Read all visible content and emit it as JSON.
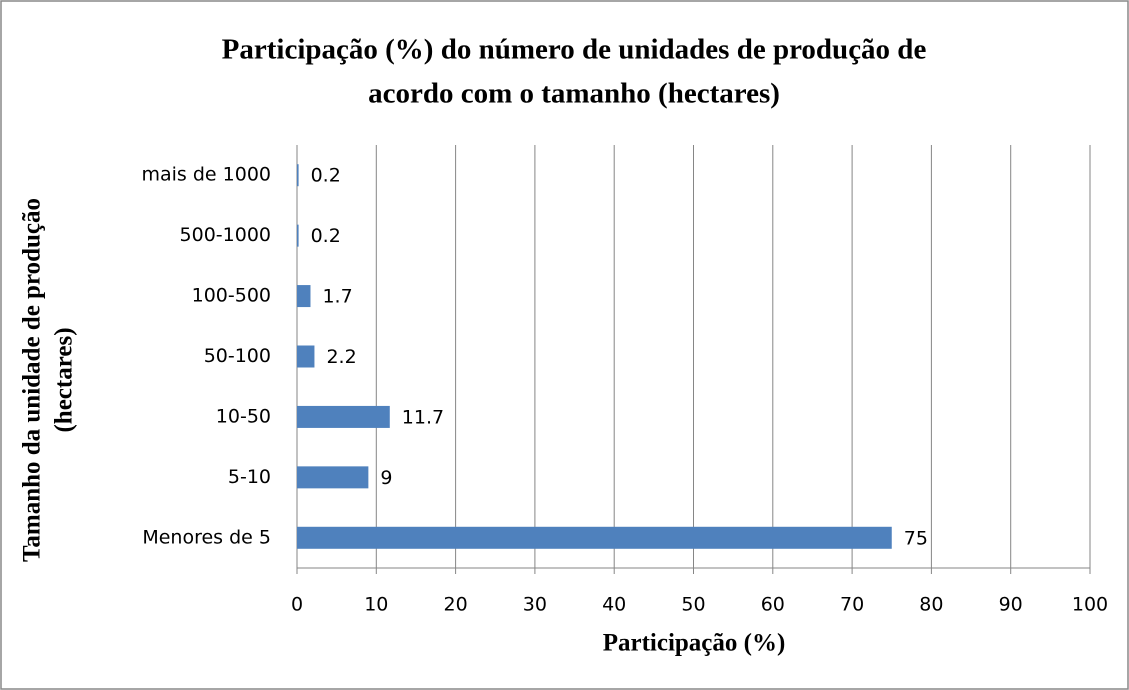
{
  "chart_data": {
    "type": "barh",
    "title": [
      "Participação (%) do número de unidades de produção de",
      "acordo com o tamanho (hectares)"
    ],
    "x_label": "Participação (%)",
    "y_label": [
      "Tamanho da unidade de produção",
      "(hectares)"
    ],
    "categories": [
      "Menores de 5",
      "5-10",
      "10-50",
      "50-100",
      "100-500",
      "500-1000",
      "mais de 1000"
    ],
    "values": [
      75,
      9,
      11.7,
      2.2,
      1.7,
      0.2,
      0.2
    ],
    "color": "#4f81bd",
    "xlim": [
      0,
      100
    ],
    "xticks": [
      0,
      10,
      20,
      30,
      40,
      50,
      60,
      70,
      80,
      90,
      100
    ],
    "grid": true
  }
}
